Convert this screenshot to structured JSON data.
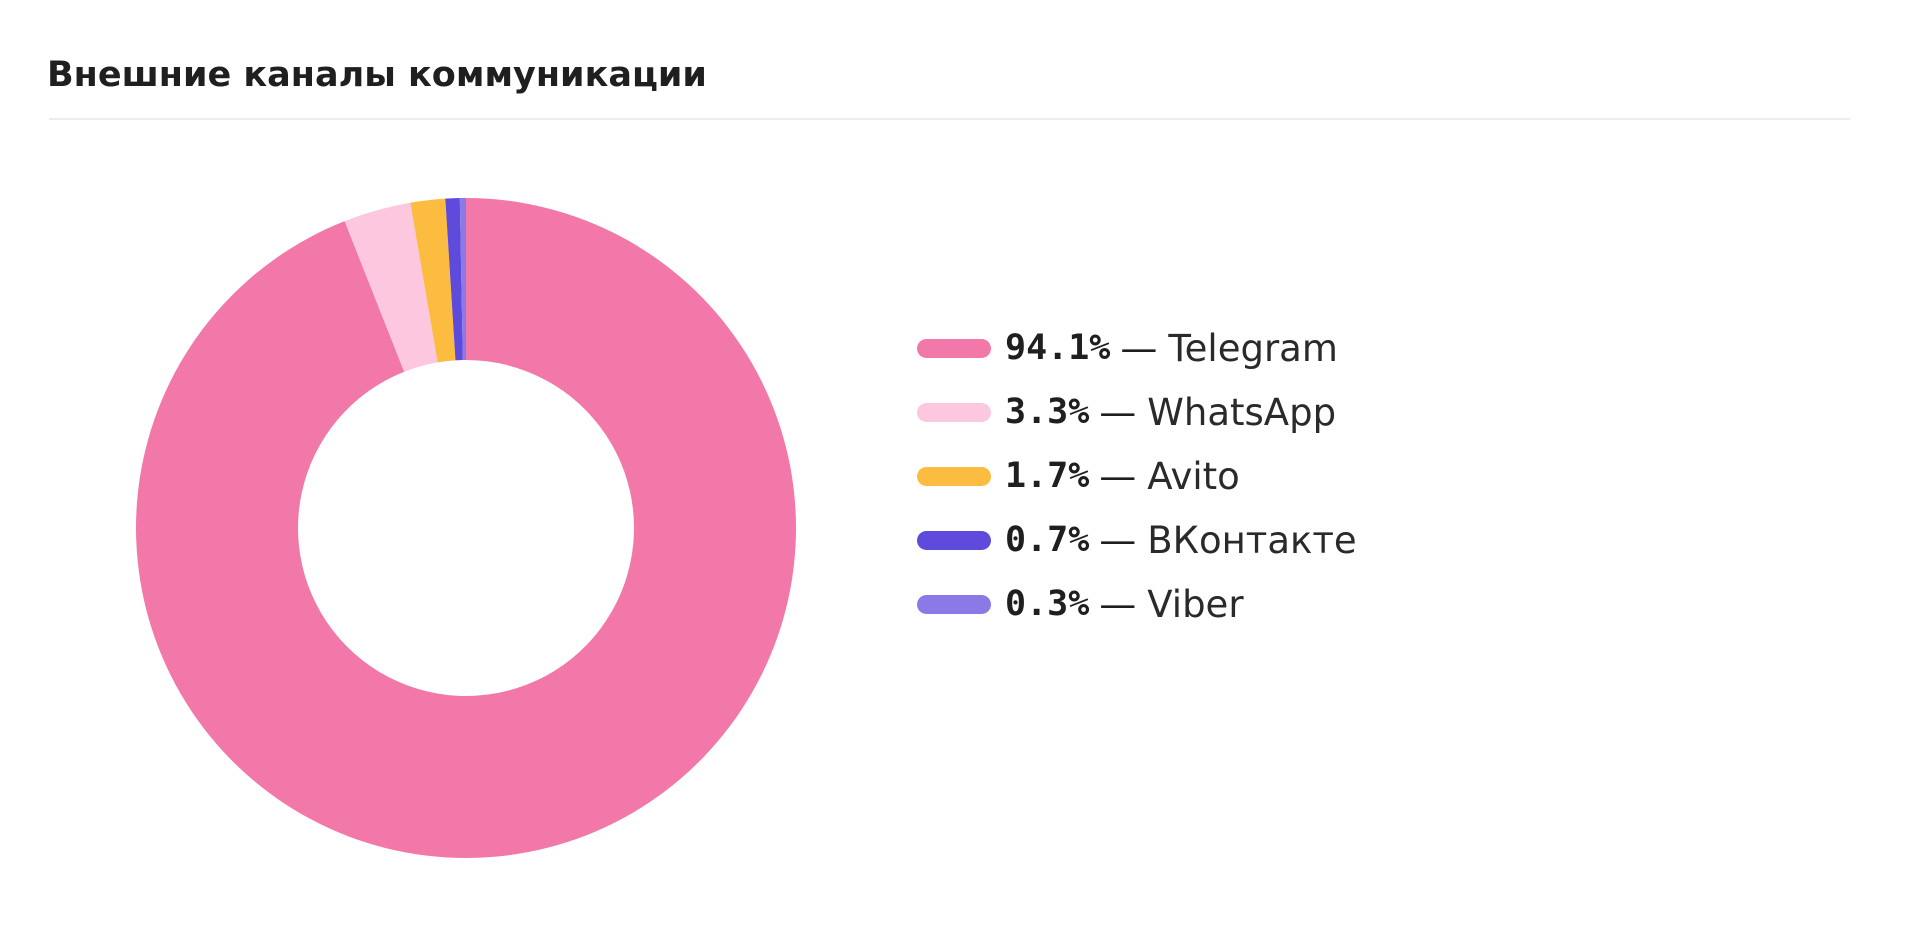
{
  "header": {
    "title": "Внешние каналы коммуникации"
  },
  "chart_data": {
    "type": "pie",
    "donut": true,
    "start": "top",
    "direction": "clockwise",
    "slices": [
      {
        "name": "Telegram",
        "value": 94.1,
        "label": "94.1%",
        "color": "#f178a8"
      },
      {
        "name": "WhatsApp",
        "value": 3.3,
        "label": "3.3%",
        "color": "#fdc8df"
      },
      {
        "name": "Avito",
        "value": 1.7,
        "label": "1.7%",
        "color": "#fbbc3f"
      },
      {
        "name": "ВКонтакте",
        "value": 0.7,
        "label": "0.7%",
        "color": "#5e4adb"
      },
      {
        "name": "Viber",
        "value": 0.3,
        "label": "0.3%",
        "color": "#8a79e6"
      }
    ],
    "legend": {
      "placement": "right",
      "separator": "—"
    }
  }
}
